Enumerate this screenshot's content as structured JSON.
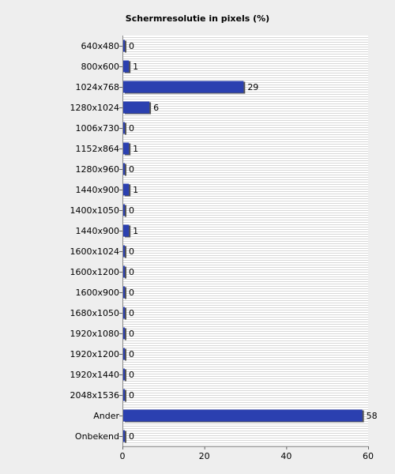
{
  "chart_data": {
    "type": "bar",
    "orientation": "horizontal",
    "title": "Schermresolutie in pixels (%)",
    "xlabel": "",
    "ylabel": "",
    "categories": [
      "640x480",
      "800x600",
      "1024x768",
      "1280x1024",
      "1006x730",
      "1152x864",
      "1280x960",
      "1440x900",
      "1400x1050",
      "1440x900",
      "1600x1024",
      "1600x1200",
      "1600x900",
      "1680x1050",
      "1920x1080",
      "1920x1200",
      "1920x1440",
      "2048x1536",
      "Ander",
      "Onbekend"
    ],
    "values": [
      0,
      1,
      29,
      6,
      0,
      1,
      0,
      1,
      0,
      1,
      0,
      0,
      0,
      0,
      0,
      0,
      0,
      0,
      58,
      0
    ],
    "xlim": [
      0,
      60
    ],
    "xticks": [
      0,
      20,
      40,
      60
    ],
    "grid": true,
    "bar_color": "#2b40b0",
    "legend": "none"
  }
}
